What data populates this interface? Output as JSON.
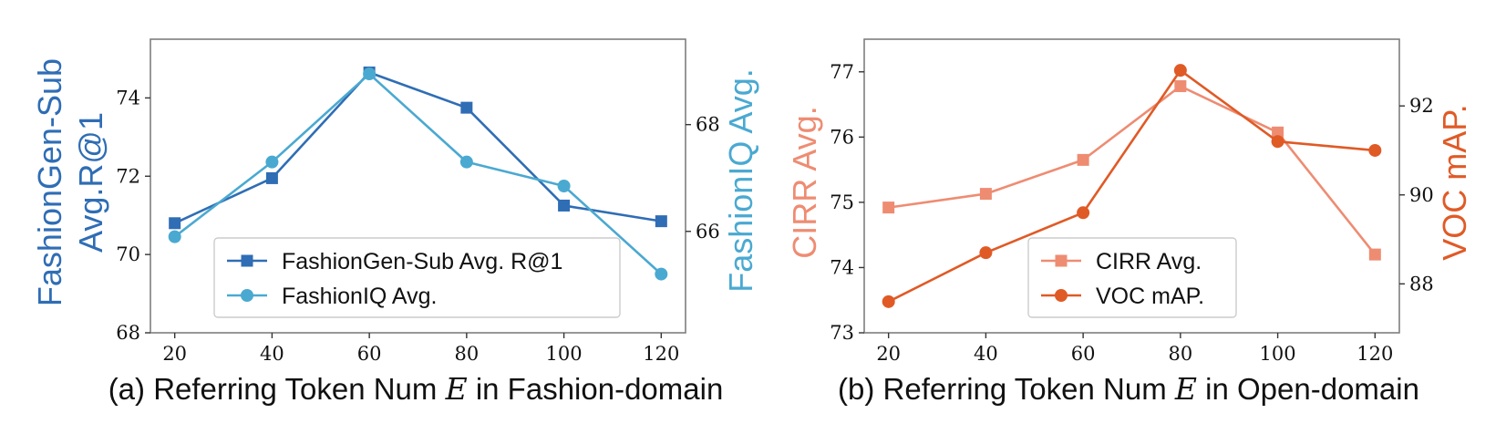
{
  "chart_data": [
    {
      "type": "line",
      "caption_prefix": "(a) Referring Token Num ",
      "caption_var": "E",
      "caption_suffix": " in Fashion-domain",
      "x": [
        20,
        40,
        60,
        80,
        100,
        120
      ],
      "xlim": [
        15,
        125
      ],
      "xticks": [
        20,
        40,
        60,
        80,
        100,
        120
      ],
      "left_axis": {
        "label": [
          "FashionGen-Sub",
          "Avg.R@1"
        ],
        "lim": [
          68,
          75.5
        ],
        "ticks": [
          68,
          70,
          72,
          74
        ],
        "color": "#2f6db5"
      },
      "right_axis": {
        "label": [
          "FashionIQ Avg."
        ],
        "lim": [
          64.1,
          69.6
        ],
        "ticks": [
          66,
          68
        ],
        "color": "#4aa9d1"
      },
      "series": [
        {
          "name": "FashionGen-Sub Avg. R@1",
          "axis": "left",
          "marker": "square",
          "color": "#2f6db5",
          "values": [
            70.8,
            71.95,
            74.65,
            73.75,
            71.25,
            70.85
          ]
        },
        {
          "name": "FashionIQ Avg.",
          "axis": "right",
          "marker": "circle",
          "color": "#4aa9d1",
          "values": [
            65.9,
            67.3,
            68.95,
            67.3,
            66.85,
            65.2
          ]
        }
      ],
      "legend_position": "lower-right"
    },
    {
      "type": "line",
      "caption_prefix": "(b) Referring Token Num ",
      "caption_var": "E",
      "caption_suffix": " in Open-domain",
      "x": [
        20,
        40,
        60,
        80,
        100,
        120
      ],
      "xlim": [
        15,
        125
      ],
      "xticks": [
        20,
        40,
        60,
        80,
        100,
        120
      ],
      "left_axis": {
        "label": [
          "CIRR Avg."
        ],
        "lim": [
          73,
          77.5
        ],
        "ticks": [
          73,
          74,
          75,
          76,
          77
        ],
        "color": "#ee8c72"
      },
      "right_axis": {
        "label": [
          "VOC mAP."
        ],
        "lim": [
          86.9,
          93.5
        ],
        "ticks": [
          88,
          90,
          92
        ],
        "color": "#e05a26"
      },
      "series": [
        {
          "name": "CIRR Avg.",
          "axis": "left",
          "marker": "square",
          "color": "#ee8c72",
          "values": [
            74.92,
            75.13,
            75.65,
            76.78,
            76.07,
            74.2
          ]
        },
        {
          "name": "VOC mAP.",
          "axis": "right",
          "marker": "circle",
          "color": "#e05a26",
          "values": [
            87.6,
            88.7,
            89.6,
            92.8,
            91.2,
            91.0
          ]
        }
      ],
      "legend_position": "lower-center"
    }
  ]
}
